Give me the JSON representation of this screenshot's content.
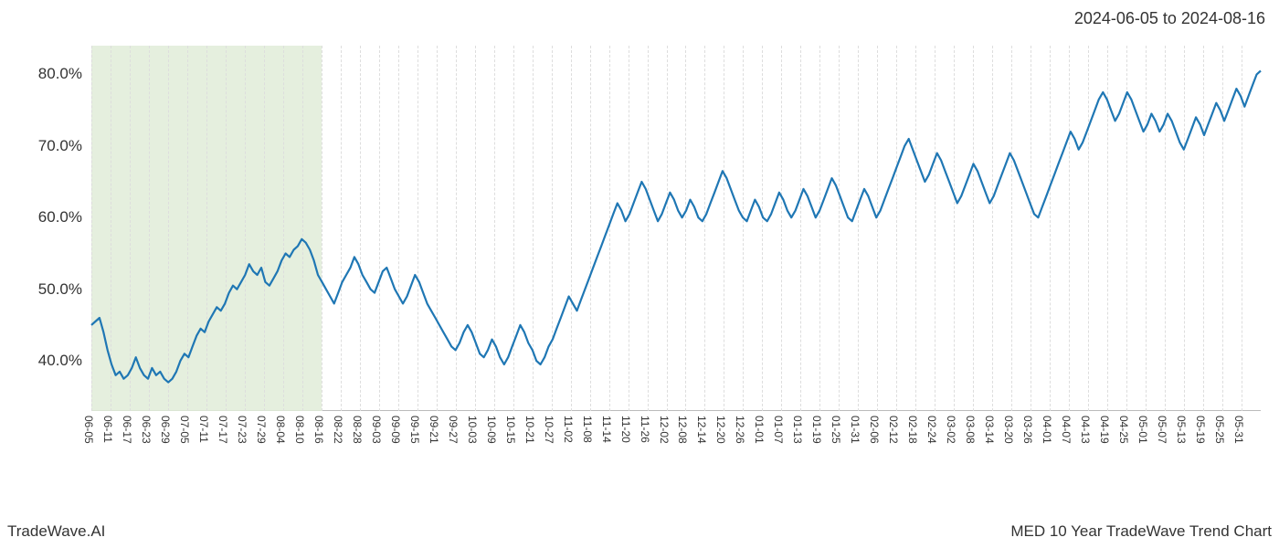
{
  "header": {
    "date_range": "2024-06-05 to 2024-08-16"
  },
  "footer": {
    "left": "TradeWave.AI",
    "right": "MED 10 Year TradeWave Trend Chart"
  },
  "chart": {
    "type": "line",
    "background_color": "#ffffff",
    "line_color": "#1f77b4",
    "line_width": 2.2,
    "grid_color": "#dddddd",
    "axis_color": "#bbbbbb",
    "highlight_band": {
      "color": "#e1ecd8",
      "opacity": 0.85,
      "x_start_index": 0,
      "x_end_index": 12
    },
    "y_axis": {
      "min": 33,
      "max": 84,
      "ticks": [
        40,
        50,
        60,
        70,
        80
      ],
      "tick_labels": [
        "40.0%",
        "50.0%",
        "60.0%",
        "70.0%",
        "80.0%"
      ],
      "label_fontsize": 17,
      "label_color": "#333333"
    },
    "x_axis": {
      "labels": [
        "06-05",
        "06-11",
        "06-17",
        "06-23",
        "06-29",
        "07-05",
        "07-11",
        "07-17",
        "07-23",
        "07-29",
        "08-04",
        "08-10",
        "08-16",
        "08-22",
        "08-28",
        "09-03",
        "09-09",
        "09-15",
        "09-21",
        "09-27",
        "10-03",
        "10-09",
        "10-15",
        "10-21",
        "10-27",
        "11-02",
        "11-08",
        "11-14",
        "11-20",
        "11-26",
        "12-02",
        "12-08",
        "12-14",
        "12-20",
        "12-26",
        "01-01",
        "01-07",
        "01-13",
        "01-19",
        "01-25",
        "01-31",
        "02-06",
        "02-12",
        "02-18",
        "02-24",
        "03-02",
        "03-08",
        "03-14",
        "03-20",
        "03-26",
        "04-01",
        "04-07",
        "04-13",
        "04-19",
        "04-25",
        "05-01",
        "05-07",
        "05-13",
        "05-19",
        "05-25",
        "05-31"
      ],
      "label_fontsize": 12,
      "label_color": "#333333",
      "rotation": 90
    },
    "series": {
      "values": [
        45.0,
        45.5,
        46.0,
        44.0,
        41.5,
        39.5,
        38.0,
        38.5,
        37.5,
        38.0,
        39.0,
        40.5,
        39.0,
        38.0,
        37.5,
        39.0,
        38.0,
        38.5,
        37.5,
        37.0,
        37.5,
        38.5,
        40.0,
        41.0,
        40.5,
        42.0,
        43.5,
        44.5,
        44.0,
        45.5,
        46.5,
        47.5,
        47.0,
        48.0,
        49.5,
        50.5,
        50.0,
        51.0,
        52.0,
        53.5,
        52.5,
        52.0,
        53.0,
        51.0,
        50.5,
        51.5,
        52.5,
        54.0,
        55.0,
        54.5,
        55.5,
        56.0,
        57.0,
        56.5,
        55.5,
        54.0,
        52.0,
        51.0,
        50.0,
        49.0,
        48.0,
        49.5,
        51.0,
        52.0,
        53.0,
        54.5,
        53.5,
        52.0,
        51.0,
        50.0,
        49.5,
        51.0,
        52.5,
        53.0,
        51.5,
        50.0,
        49.0,
        48.0,
        49.0,
        50.5,
        52.0,
        51.0,
        49.5,
        48.0,
        47.0,
        46.0,
        45.0,
        44.0,
        43.0,
        42.0,
        41.5,
        42.5,
        44.0,
        45.0,
        44.0,
        42.5,
        41.0,
        40.5,
        41.5,
        43.0,
        42.0,
        40.5,
        39.5,
        40.5,
        42.0,
        43.5,
        45.0,
        44.0,
        42.5,
        41.5,
        40.0,
        39.5,
        40.5,
        42.0,
        43.0,
        44.5,
        46.0,
        47.5,
        49.0,
        48.0,
        47.0,
        48.5,
        50.0,
        51.5,
        53.0,
        54.5,
        56.0,
        57.5,
        59.0,
        60.5,
        62.0,
        61.0,
        59.5,
        60.5,
        62.0,
        63.5,
        65.0,
        64.0,
        62.5,
        61.0,
        59.5,
        60.5,
        62.0,
        63.5,
        62.5,
        61.0,
        60.0,
        61.0,
        62.5,
        61.5,
        60.0,
        59.5,
        60.5,
        62.0,
        63.5,
        65.0,
        66.5,
        65.5,
        64.0,
        62.5,
        61.0,
        60.0,
        59.5,
        61.0,
        62.5,
        61.5,
        60.0,
        59.5,
        60.5,
        62.0,
        63.5,
        62.5,
        61.0,
        60.0,
        61.0,
        62.5,
        64.0,
        63.0,
        61.5,
        60.0,
        61.0,
        62.5,
        64.0,
        65.5,
        64.5,
        63.0,
        61.5,
        60.0,
        59.5,
        61.0,
        62.5,
        64.0,
        63.0,
        61.5,
        60.0,
        61.0,
        62.5,
        64.0,
        65.5,
        67.0,
        68.5,
        70.0,
        71.0,
        69.5,
        68.0,
        66.5,
        65.0,
        66.0,
        67.5,
        69.0,
        68.0,
        66.5,
        65.0,
        63.5,
        62.0,
        63.0,
        64.5,
        66.0,
        67.5,
        66.5,
        65.0,
        63.5,
        62.0,
        63.0,
        64.5,
        66.0,
        67.5,
        69.0,
        68.0,
        66.5,
        65.0,
        63.5,
        62.0,
        60.5,
        60.0,
        61.5,
        63.0,
        64.5,
        66.0,
        67.5,
        69.0,
        70.5,
        72.0,
        71.0,
        69.5,
        70.5,
        72.0,
        73.5,
        75.0,
        76.5,
        77.5,
        76.5,
        75.0,
        73.5,
        74.5,
        76.0,
        77.5,
        76.5,
        75.0,
        73.5,
        72.0,
        73.0,
        74.5,
        73.5,
        72.0,
        73.0,
        74.5,
        73.5,
        72.0,
        70.5,
        69.5,
        71.0,
        72.5,
        74.0,
        73.0,
        71.5,
        73.0,
        74.5,
        76.0,
        75.0,
        73.5,
        75.0,
        76.5,
        78.0,
        77.0,
        75.5,
        77.0,
        78.5,
        80.0,
        80.5
      ]
    }
  }
}
